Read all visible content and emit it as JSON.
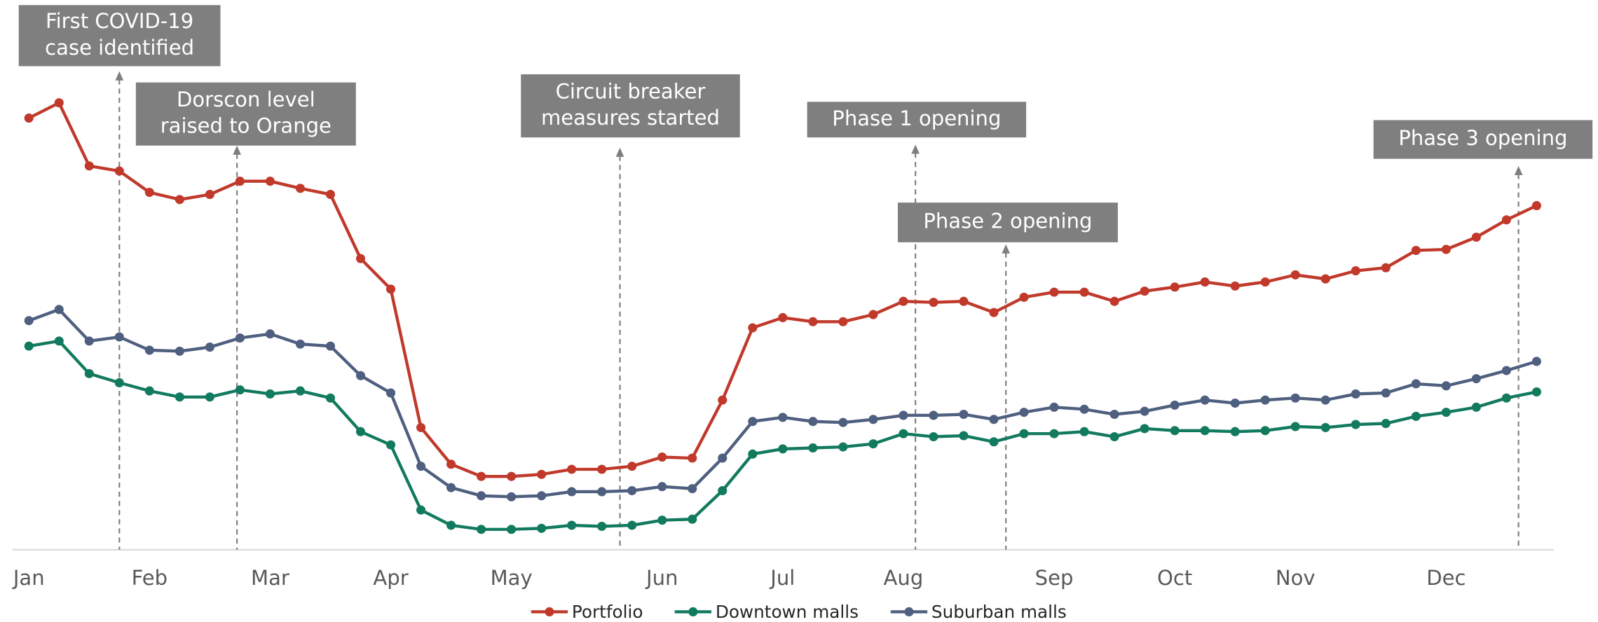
{
  "chart_data": {
    "type": "line",
    "x": [
      0,
      1,
      2,
      3,
      4,
      5,
      6,
      7,
      8,
      9,
      10,
      11,
      12,
      13,
      14,
      15,
      16,
      17,
      18,
      19,
      20,
      21,
      22,
      23,
      24,
      25,
      26,
      27,
      28,
      29,
      30,
      31,
      32,
      33,
      34,
      35,
      36,
      37,
      38,
      39,
      40,
      41,
      42,
      43,
      44,
      45,
      46,
      47,
      48,
      49,
      50
    ],
    "xlim": [
      -0.54,
      50.57
    ],
    "xticks": [
      {
        "value": 0,
        "label": "Jan"
      },
      {
        "value": 4,
        "label": "Feb"
      },
      {
        "value": 8,
        "label": "Mar"
      },
      {
        "value": 12,
        "label": "Apr"
      },
      {
        "value": 16,
        "label": "May"
      },
      {
        "value": 21,
        "label": "Jun"
      },
      {
        "value": 25,
        "label": "Jul"
      },
      {
        "value": 29,
        "label": "Aug"
      },
      {
        "value": 34,
        "label": "Sep"
      },
      {
        "value": 38,
        "label": "Oct"
      },
      {
        "value": 42,
        "label": "Nov"
      },
      {
        "value": 47,
        "label": "Dec"
      }
    ],
    "ylim": [
      0,
      450
    ],
    "legend": "bottom",
    "series": [
      {
        "name": "Portfolio",
        "color": "#c0392b",
        "values": [
          424,
          439,
          377,
          372,
          351,
          344,
          349,
          362,
          362,
          355,
          349,
          286,
          256,
          120,
          84,
          72,
          72,
          74,
          79,
          79,
          82,
          91,
          90,
          147,
          218,
          228,
          224,
          224,
          231,
          244,
          243,
          244,
          233,
          248,
          253,
          253,
          244,
          254,
          258,
          263,
          259,
          263,
          270,
          266,
          274,
          277,
          294,
          295,
          307,
          324,
          338
        ]
      },
      {
        "name": "Downtown malls",
        "color": "#127a5e",
        "values": [
          200,
          205,
          173,
          164,
          156,
          150,
          150,
          157,
          153,
          156,
          149,
          116,
          103,
          39,
          24,
          20,
          20,
          21,
          24,
          23,
          24,
          29,
          30,
          58,
          94,
          99,
          100,
          101,
          104,
          114,
          111,
          112,
          106,
          114,
          114,
          116,
          111,
          119,
          117,
          117,
          116,
          117,
          121,
          120,
          123,
          124,
          131,
          135,
          140,
          149,
          155
        ]
      },
      {
        "name": "Suburban malls",
        "color": "#4f5f7f",
        "values": [
          225,
          236,
          205,
          209,
          196,
          195,
          199,
          208,
          212,
          202,
          200,
          171,
          154,
          82,
          61,
          53,
          52,
          53,
          57,
          57,
          58,
          62,
          60,
          90,
          126,
          130,
          126,
          125,
          128,
          132,
          132,
          133,
          128,
          135,
          140,
          138,
          133,
          136,
          142,
          147,
          144,
          147,
          149,
          147,
          153,
          154,
          163,
          161,
          168,
          176,
          185
        ]
      }
    ],
    "annotations": [
      {
        "x": 3.0,
        "lines": [
          "First COVID-19",
          "case identified"
        ]
      },
      {
        "x": 6.9,
        "lines": [
          "Dorscon level",
          "raised to Orange"
        ]
      },
      {
        "x": 19.6,
        "lines": [
          "Circuit breaker",
          "measures started"
        ]
      },
      {
        "x": 29.4,
        "lines": [
          "Phase 1 opening"
        ]
      },
      {
        "x": 32.4,
        "lines": [
          "Phase 2 opening"
        ]
      },
      {
        "x": 49.4,
        "lines": [
          "Phase 3 opening"
        ]
      }
    ]
  }
}
